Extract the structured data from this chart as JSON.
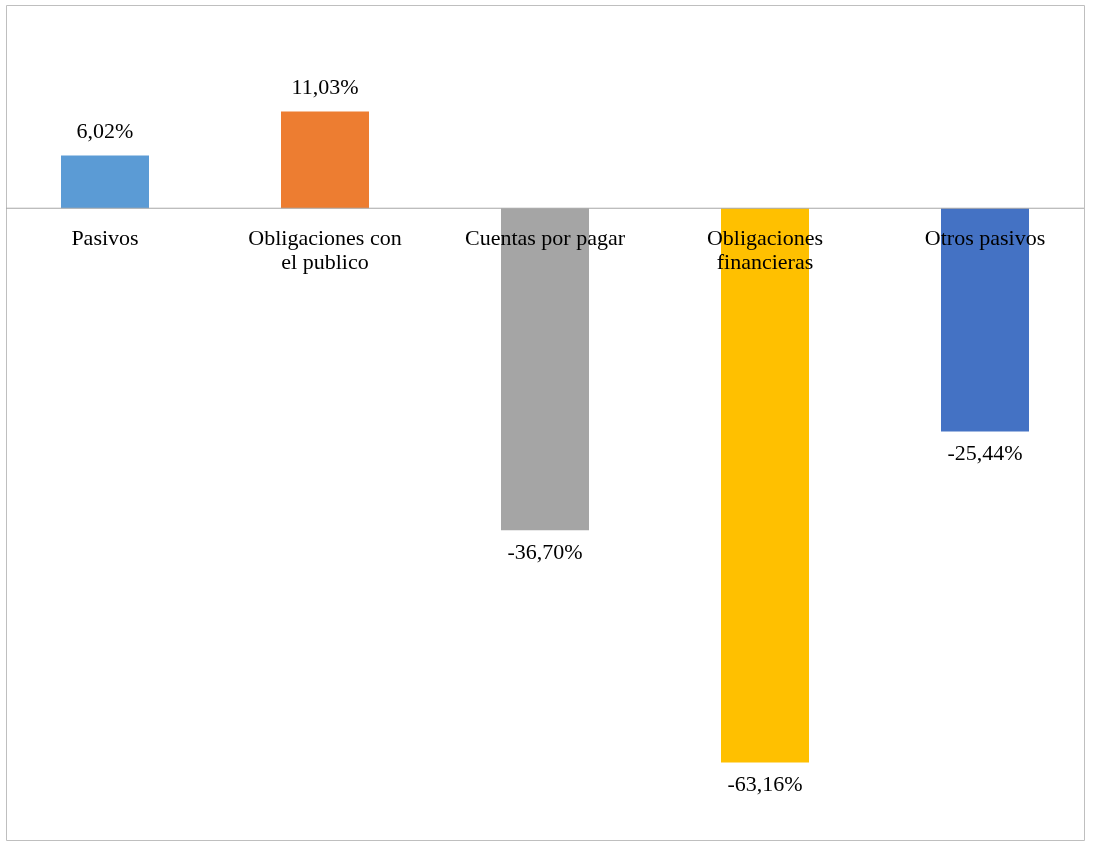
{
  "chart_data": {
    "type": "bar",
    "categories": [
      "Pasivos",
      "Obligaciones con el publico",
      "Cuentas por pagar",
      "Obligaciones financieras",
      "Otros pasivos"
    ],
    "values": [
      6.02,
      11.03,
      -36.7,
      -63.16,
      -25.44
    ],
    "colors": [
      "#5b9bd5",
      "#ed7d31",
      "#a5a5a5",
      "#ffc000",
      "#4472c4"
    ],
    "value_labels": [
      "6,02%",
      "11,03%",
      "-36,70%",
      "-63,16%",
      "-25,44%"
    ]
  }
}
